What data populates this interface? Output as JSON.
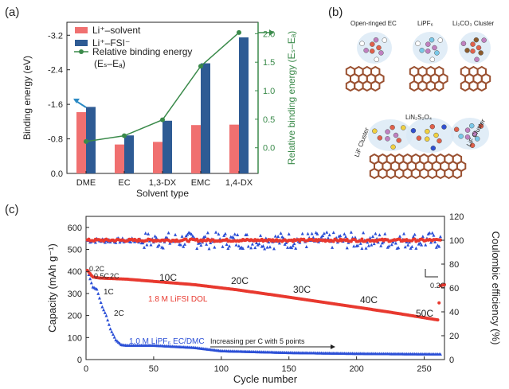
{
  "panels": {
    "a": "(a)",
    "b": "(b)",
    "c": "(c)"
  },
  "chart_data": [
    {
      "type": "bar",
      "categories": [
        "DME",
        "EC",
        "1,3-DX",
        "EMC",
        "1,4-DX"
      ],
      "series": [
        {
          "name": "Li⁺–solvent",
          "color": "#f07070",
          "values": [
            -1.42,
            -0.67,
            -0.73,
            -1.12,
            -1.13
          ]
        },
        {
          "name": "Li⁺–FSI⁻",
          "color": "#2e5b94",
          "values": [
            -1.54,
            -0.88,
            -1.22,
            -2.55,
            -3.15
          ]
        }
      ],
      "line": {
        "name": "Relative binding energy",
        "name_sub": "(Eₛ–Eₐ)",
        "color": "#3a8a4a",
        "values": [
          0.11,
          0.21,
          0.49,
          1.43,
          2.02
        ]
      },
      "xlabel": "Solvent type",
      "ylabel": "Binding energy (eV)",
      "y2label": "Relative binding energy (Eₛ–Eₐ)",
      "ylim": [
        0,
        -3.5
      ],
      "y2lim": [
        -0.45,
        2.2
      ],
      "yticks": [
        "0.0",
        "-0.8",
        "-1.6",
        "-2.4",
        "-3.2"
      ],
      "y2ticks": [
        "0.0",
        "0.5",
        "1.0",
        "1.5",
        "2.0"
      ]
    },
    {
      "type": "scatter",
      "xlabel": "Cycle number",
      "ylabel": "Capacity (mAh g⁻¹)",
      "y2label": "Coulombic efficiency (%)",
      "xlim": [
        0,
        265
      ],
      "ylim": [
        0,
        650
      ],
      "y2lim": [
        0,
        120
      ],
      "xticks": [
        "0",
        "50",
        "100",
        "150",
        "200",
        "250"
      ],
      "yticks": [
        "0",
        "100",
        "200",
        "300",
        "400",
        "500",
        "600"
      ],
      "y2ticks": [
        "0",
        "20",
        "40",
        "60",
        "80",
        "100",
        "120"
      ],
      "series": [
        {
          "name": "1.8 M LiFSI DOL",
          "color": "#e8392f",
          "capacity": [
            [
              1,
              405
            ],
            [
              5,
              375
            ],
            [
              10,
              370
            ],
            [
              30,
              365
            ],
            [
              50,
              355
            ],
            [
              80,
              340
            ],
            [
              110,
              318
            ],
            [
              140,
              292
            ],
            [
              170,
              265
            ],
            [
              200,
              238
            ],
            [
              230,
              210
            ],
            [
              250,
              190
            ],
            [
              260,
              180
            ],
            [
              262,
              335
            ],
            [
              265,
              340
            ]
          ],
          "efficiency": 100
        },
        {
          "name": "1.0 M LiPF₆ EC/DMC",
          "color": "#2b4fd6",
          "capacity": [
            [
              1,
              405
            ],
            [
              5,
              330
            ],
            [
              8,
              320
            ],
            [
              12,
              240
            ],
            [
              15,
              200
            ],
            [
              18,
              140
            ],
            [
              22,
              90
            ],
            [
              26,
              68
            ],
            [
              30,
              65
            ],
            [
              50,
              65
            ],
            [
              80,
              55
            ],
            [
              100,
              40
            ],
            [
              150,
              32
            ],
            [
              200,
              28
            ],
            [
              265,
              25
            ]
          ],
          "efficiency": 100
        }
      ],
      "annotations": [
        "0.2C",
        "0.5C",
        "2C",
        "1C",
        "2C",
        "10C",
        "20C",
        "30C",
        "40C",
        "50C",
        "0.2C",
        "Increasing per C with 5 points"
      ]
    }
  ],
  "structure": {
    "top_labels": [
      "Open-ringed EC",
      "LiPF₆",
      "Li₂CO₃ Cluster"
    ],
    "bottom_labels": [
      "LiN₂S₂O₄",
      "LiF Cluster",
      "LiF Cluster"
    ]
  }
}
